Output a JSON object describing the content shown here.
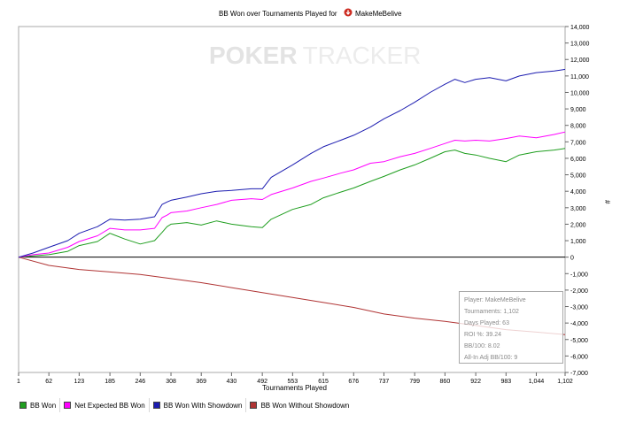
{
  "chart_data": {
    "type": "line",
    "title": "BB Won over Tournaments Played for",
    "player": "MakeMeBelive",
    "watermark": {
      "bold": "POKER",
      "light": "TRACKER"
    },
    "xlabel": "Tournaments Played",
    "ylabel": "#",
    "xlim": [
      1,
      1102
    ],
    "ylim": [
      -7000,
      14000
    ],
    "x_ticks": [
      "1",
      "62",
      "123",
      "185",
      "246",
      "308",
      "369",
      "430",
      "492",
      "553",
      "615",
      "676",
      "737",
      "799",
      "860",
      "922",
      "983",
      "1,044",
      "1,102"
    ],
    "y_ticks": [
      "14,000",
      "13,000",
      "12,000",
      "11,000",
      "10,000",
      "9,000",
      "8,000",
      "7,000",
      "6,000",
      "5,000",
      "4,000",
      "3,000",
      "2,000",
      "1,000",
      "0",
      "-1,000",
      "-2,000",
      "-3,000",
      "-4,000",
      "-5,000",
      "-6,000",
      "-7,000"
    ],
    "grid": false,
    "legend_position": "bottom-left",
    "series": [
      {
        "name": "BB Won",
        "color": "#1f9e1f",
        "x": [
          1,
          30,
          62,
          100,
          123,
          160,
          185,
          215,
          246,
          275,
          290,
          300,
          308,
          340,
          369,
          400,
          430,
          470,
          492,
          510,
          553,
          590,
          615,
          650,
          676,
          710,
          737,
          770,
          799,
          830,
          860,
          880,
          900,
          922,
          950,
          983,
          1010,
          1044,
          1080,
          1102
        ],
        "y": [
          0,
          80,
          150,
          350,
          700,
          950,
          1450,
          1100,
          800,
          1000,
          1500,
          1850,
          2000,
          2100,
          1950,
          2200,
          2000,
          1850,
          1800,
          2300,
          2900,
          3200,
          3600,
          3950,
          4200,
          4600,
          4900,
          5300,
          5600,
          6000,
          6400,
          6500,
          6300,
          6200,
          6000,
          5800,
          6200,
          6400,
          6500,
          6600
        ]
      },
      {
        "name": "Net Expected BB Won",
        "color": "#ff00ff",
        "x": [
          1,
          30,
          62,
          100,
          123,
          160,
          185,
          215,
          246,
          275,
          290,
          300,
          308,
          340,
          369,
          400,
          430,
          470,
          492,
          510,
          553,
          590,
          615,
          650,
          676,
          710,
          737,
          770,
          799,
          830,
          860,
          880,
          900,
          922,
          950,
          983,
          1010,
          1044,
          1080,
          1102
        ],
        "y": [
          0,
          150,
          250,
          600,
          950,
          1300,
          1750,
          1650,
          1650,
          1750,
          2400,
          2550,
          2700,
          2800,
          3000,
          3200,
          3450,
          3550,
          3500,
          3800,
          4200,
          4600,
          4800,
          5100,
          5300,
          5700,
          5800,
          6100,
          6300,
          6600,
          6900,
          7100,
          7050,
          7100,
          7050,
          7200,
          7350,
          7250,
          7450,
          7600
        ]
      },
      {
        "name": "BB Won With Showdown",
        "color": "#1c1cb0",
        "x": [
          1,
          30,
          62,
          100,
          123,
          160,
          185,
          215,
          246,
          275,
          290,
          300,
          308,
          340,
          369,
          400,
          430,
          470,
          492,
          510,
          553,
          590,
          615,
          650,
          676,
          710,
          737,
          770,
          799,
          830,
          860,
          880,
          900,
          922,
          950,
          983,
          1010,
          1044,
          1080,
          1102
        ],
        "y": [
          0,
          250,
          600,
          1000,
          1450,
          1850,
          2300,
          2250,
          2300,
          2450,
          3200,
          3350,
          3450,
          3650,
          3850,
          4000,
          4050,
          4150,
          4150,
          4850,
          5600,
          6300,
          6700,
          7100,
          7400,
          7900,
          8400,
          8900,
          9400,
          10000,
          10500,
          10800,
          10600,
          10800,
          10900,
          10700,
          11000,
          11200,
          11300,
          11400
        ]
      },
      {
        "name": "BB Won Without Showdown",
        "color": "#b03434",
        "x": [
          1,
          62,
          123,
          185,
          246,
          308,
          369,
          430,
          492,
          553,
          615,
          676,
          737,
          799,
          860,
          922,
          983,
          1044,
          1102
        ],
        "y": [
          0,
          -500,
          -750,
          -900,
          -1050,
          -1300,
          -1550,
          -1850,
          -2150,
          -2450,
          -2750,
          -3050,
          -3450,
          -3700,
          -3900,
          -4150,
          -4400,
          -4550,
          -4700
        ]
      }
    ]
  },
  "stats_box": {
    "player": "Player: MakeMeBelive",
    "tournaments": "Tournaments: 1,102",
    "days_played": "Days Played: 63",
    "roi": "ROI %: 39.24",
    "bb100": "BB/100: 8.02",
    "allin_bb100": "All-In Adj BB/100: 9"
  }
}
